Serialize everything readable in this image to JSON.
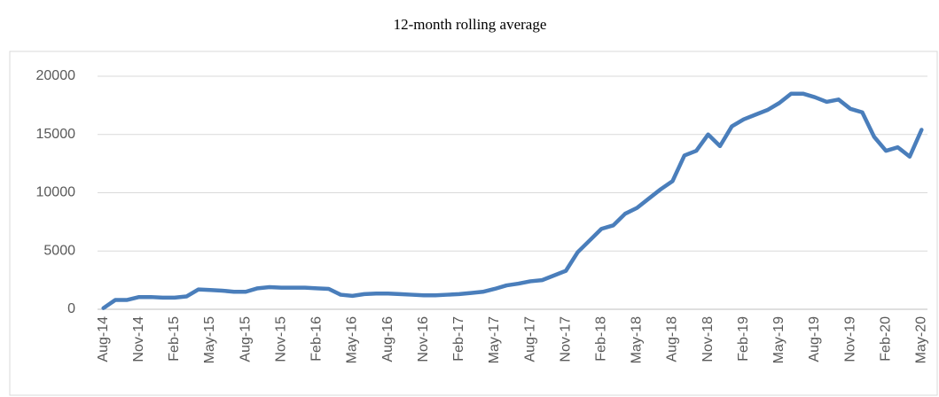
{
  "chart_data": {
    "type": "line",
    "title": "12-month rolling average",
    "categories": [
      "Aug-14",
      null,
      null,
      "Nov-14",
      null,
      null,
      "Feb-15",
      null,
      null,
      "May-15",
      null,
      null,
      "Aug-15",
      null,
      null,
      "Nov-15",
      null,
      null,
      "Feb-16",
      null,
      null,
      "May-16",
      null,
      null,
      "Aug-16",
      null,
      null,
      "Nov-16",
      null,
      null,
      "Feb-17",
      null,
      null,
      "May-17",
      null,
      null,
      "Aug-17",
      null,
      null,
      "Nov-17",
      null,
      null,
      "Feb-18",
      null,
      null,
      "May-18",
      null,
      null,
      "Aug-18",
      null,
      null,
      "Nov-18",
      null,
      null,
      "Feb-19",
      null,
      null,
      "May-19",
      null,
      null,
      "Aug-19",
      null,
      null,
      "Nov-19",
      null,
      null,
      "Feb-20",
      null,
      null,
      "May-20"
    ],
    "values": [
      100,
      800,
      800,
      1050,
      1050,
      1000,
      1000,
      1100,
      1700,
      1650,
      1600,
      1500,
      1500,
      1800,
      1900,
      1850,
      1850,
      1850,
      1800,
      1750,
      1250,
      1150,
      1300,
      1350,
      1350,
      1300,
      1250,
      1200,
      1200,
      1250,
      1300,
      1400,
      1500,
      1750,
      2050,
      2200,
      2400,
      2500,
      2900,
      3300,
      4900,
      5900,
      6900,
      7200,
      8200,
      8700,
      9500,
      10300,
      11000,
      13200,
      13600,
      15000,
      14000,
      15700,
      16300,
      16700,
      17100,
      17700,
      18500,
      18500,
      18200,
      17800,
      18000,
      17200,
      16900,
      14800,
      13600,
      13900,
      13100,
      15400
    ],
    "color": "#4a7ebb",
    "ylim": [
      0,
      20000
    ],
    "yticks": [
      0,
      5000,
      10000,
      15000,
      20000
    ],
    "grid": true
  }
}
